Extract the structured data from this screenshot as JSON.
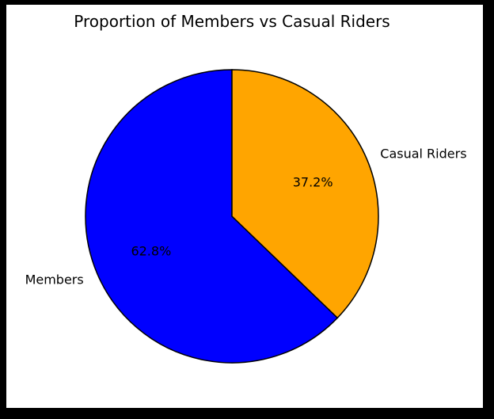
{
  "chart_data": {
    "type": "pie",
    "title": "Proportion of Members vs Casual Riders",
    "slices": [
      {
        "label": "Members",
        "value": 62.8,
        "pct_label": "62.8%",
        "color": "#0000ff"
      },
      {
        "label": "Casual Riders",
        "value": 37.2,
        "pct_label": "37.2%",
        "color": "#ffa500"
      }
    ],
    "start_angle": 90,
    "direction": "counterclockwise",
    "edge_color": "#000000"
  }
}
